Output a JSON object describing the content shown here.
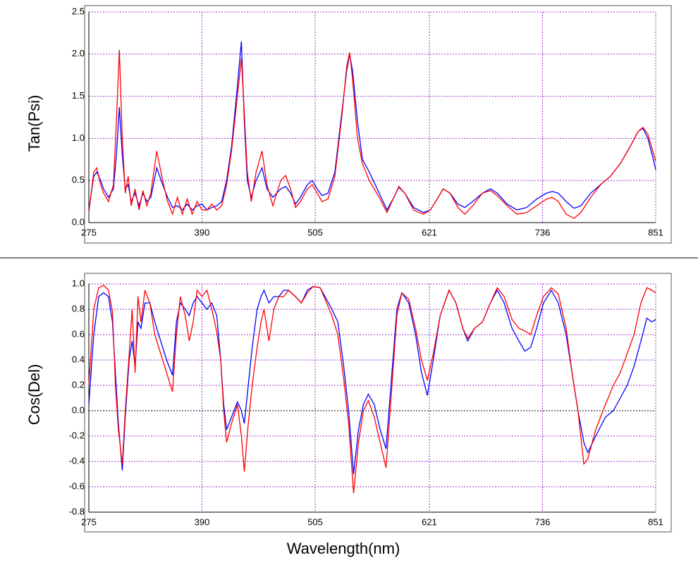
{
  "chart_data": [
    {
      "type": "line",
      "ylabel": "Tan(Psi)",
      "x": [
        275,
        280,
        283,
        287,
        290,
        295,
        300,
        303,
        306,
        309,
        312,
        315,
        318,
        322,
        326,
        330,
        334,
        338,
        344,
        350,
        355,
        360,
        365,
        370,
        375,
        380,
        385,
        390,
        395,
        400,
        405,
        410,
        415,
        420,
        425,
        430,
        433,
        436,
        440,
        445,
        451,
        456,
        462,
        470,
        475,
        480,
        485,
        490,
        497,
        502,
        507,
        512,
        518,
        525,
        532,
        537,
        540,
        543,
        548,
        553,
        560,
        570,
        578,
        585,
        590,
        596,
        605,
        615,
        622,
        630,
        635,
        642,
        650,
        657,
        665,
        675,
        683,
        690,
        700,
        710,
        720,
        730,
        740,
        746,
        752,
        760,
        768,
        775,
        785,
        795,
        805,
        815,
        825,
        833,
        838,
        843,
        848,
        851
      ],
      "series": [
        {
          "color": "#0000ff",
          "values": [
            0.15,
            0.55,
            0.6,
            0.5,
            0.4,
            0.3,
            0.4,
            0.8,
            1.37,
            0.8,
            0.4,
            0.45,
            0.25,
            0.35,
            0.2,
            0.35,
            0.25,
            0.3,
            0.65,
            0.45,
            0.3,
            0.18,
            0.2,
            0.15,
            0.22,
            0.15,
            0.2,
            0.22,
            0.15,
            0.18,
            0.2,
            0.25,
            0.5,
            0.9,
            1.5,
            2.15,
            1.2,
            0.5,
            0.3,
            0.5,
            0.65,
            0.4,
            0.3,
            0.4,
            0.43,
            0.35,
            0.22,
            0.3,
            0.45,
            0.5,
            0.4,
            0.32,
            0.35,
            0.6,
            1.3,
            1.8,
            2.0,
            1.8,
            1.2,
            0.75,
            0.6,
            0.35,
            0.15,
            0.3,
            0.42,
            0.35,
            0.18,
            0.12,
            0.15,
            0.3,
            0.4,
            0.35,
            0.22,
            0.18,
            0.25,
            0.35,
            0.4,
            0.35,
            0.22,
            0.15,
            0.18,
            0.28,
            0.35,
            0.37,
            0.35,
            0.25,
            0.17,
            0.2,
            0.35,
            0.45,
            0.55,
            0.7,
            0.9,
            1.08,
            1.12,
            1.0,
            0.78,
            0.63
          ]
        },
        {
          "color": "#ff0000",
          "values": [
            0.12,
            0.6,
            0.65,
            0.45,
            0.35,
            0.25,
            0.45,
            1.2,
            2.05,
            1.0,
            0.35,
            0.55,
            0.2,
            0.4,
            0.15,
            0.38,
            0.2,
            0.35,
            0.85,
            0.5,
            0.25,
            0.1,
            0.3,
            0.1,
            0.28,
            0.1,
            0.25,
            0.15,
            0.15,
            0.22,
            0.15,
            0.2,
            0.45,
            0.85,
            1.4,
            1.95,
            1.3,
            0.6,
            0.25,
            0.6,
            0.85,
            0.45,
            0.2,
            0.5,
            0.56,
            0.4,
            0.18,
            0.25,
            0.4,
            0.45,
            0.35,
            0.25,
            0.28,
            0.55,
            1.25,
            1.85,
            2.02,
            1.7,
            1.0,
            0.7,
            0.5,
            0.3,
            0.12,
            0.3,
            0.43,
            0.35,
            0.15,
            0.1,
            0.15,
            0.3,
            0.4,
            0.35,
            0.18,
            0.1,
            0.2,
            0.35,
            0.38,
            0.32,
            0.2,
            0.1,
            0.12,
            0.2,
            0.28,
            0.3,
            0.25,
            0.1,
            0.05,
            0.12,
            0.3,
            0.45,
            0.55,
            0.7,
            0.9,
            1.08,
            1.13,
            1.05,
            0.85,
            0.73
          ]
        }
      ],
      "xlim": [
        275,
        851
      ],
      "xticks": [
        275,
        390,
        505,
        621,
        736,
        851
      ],
      "ylim": [
        0,
        2.5
      ],
      "yticks": [
        {
          "value": 0,
          "label": "0.0"
        },
        0.5,
        {
          "value": 1,
          "label": "1.0"
        },
        1.5,
        {
          "value": 2,
          "label": "2.0"
        },
        2.5
      ],
      "grid": true,
      "grid_color": "#9933cc"
    },
    {
      "type": "line",
      "ylabel": "Cos(Del)",
      "xlabel": "Wavelength(nm)",
      "x": [
        275,
        280,
        285,
        290,
        295,
        299,
        302,
        305,
        309,
        312,
        316,
        319,
        322,
        325,
        328,
        332,
        337,
        342,
        348,
        354,
        360,
        364,
        368,
        373,
        377,
        381,
        385,
        390,
        395,
        400,
        405,
        409,
        412,
        415,
        420,
        426,
        430,
        433,
        437,
        441,
        446,
        450,
        453,
        458,
        463,
        468,
        473,
        478,
        485,
        491,
        497,
        503,
        510,
        515,
        522,
        528,
        534,
        539,
        544,
        549,
        554,
        559,
        565,
        571,
        577,
        583,
        588,
        593,
        600,
        607,
        613,
        619,
        625,
        632,
        641,
        648,
        655,
        660,
        667,
        675,
        683,
        690,
        697,
        705,
        712,
        718,
        724,
        730,
        737,
        745,
        752,
        760,
        766,
        772,
        778,
        782,
        790,
        800,
        808,
        815,
        822,
        829,
        836,
        842,
        847,
        851
      ],
      "series": [
        {
          "color": "#0000ff",
          "values": [
            0.05,
            0.6,
            0.9,
            0.93,
            0.9,
            0.7,
            0.3,
            -0.1,
            -0.47,
            -0.05,
            0.4,
            0.55,
            0.35,
            0.7,
            0.65,
            0.85,
            0.85,
            0.7,
            0.55,
            0.4,
            0.28,
            0.7,
            0.85,
            0.8,
            0.75,
            0.85,
            0.9,
            0.85,
            0.8,
            0.85,
            0.75,
            0.4,
            0.05,
            -0.15,
            -0.05,
            0.07,
            0.0,
            -0.1,
            0.2,
            0.5,
            0.8,
            0.9,
            0.95,
            0.85,
            0.9,
            0.9,
            0.95,
            0.95,
            0.9,
            0.85,
            0.95,
            0.98,
            0.97,
            0.9,
            0.8,
            0.7,
            0.35,
            0.0,
            -0.5,
            -0.15,
            0.05,
            0.13,
            0.05,
            -0.15,
            -0.3,
            0.3,
            0.8,
            0.93,
            0.85,
            0.6,
            0.3,
            0.12,
            0.4,
            0.75,
            0.95,
            0.85,
            0.65,
            0.55,
            0.65,
            0.7,
            0.85,
            0.95,
            0.85,
            0.65,
            0.55,
            0.47,
            0.5,
            0.65,
            0.85,
            0.95,
            0.85,
            0.6,
            0.3,
            0.0,
            -0.25,
            -0.33,
            -0.2,
            -0.05,
            0.0,
            0.1,
            0.2,
            0.35,
            0.55,
            0.73,
            0.7,
            0.72
          ]
        },
        {
          "color": "#ff0000",
          "values": [
            0.2,
            0.8,
            0.97,
            0.99,
            0.95,
            0.78,
            0.2,
            -0.15,
            -0.42,
            0.0,
            0.45,
            0.8,
            0.3,
            0.9,
            0.7,
            0.95,
            0.85,
            0.6,
            0.45,
            0.3,
            0.15,
            0.6,
            0.9,
            0.75,
            0.55,
            0.7,
            0.95,
            0.9,
            0.95,
            0.8,
            0.62,
            0.4,
            0.0,
            -0.25,
            -0.1,
            0.05,
            -0.2,
            -0.48,
            -0.1,
            0.2,
            0.5,
            0.7,
            0.8,
            0.55,
            0.8,
            0.9,
            0.9,
            0.95,
            0.9,
            0.85,
            0.93,
            0.98,
            0.97,
            0.88,
            0.75,
            0.6,
            0.25,
            -0.1,
            -0.65,
            -0.25,
            0.0,
            0.08,
            -0.05,
            -0.25,
            -0.45,
            0.2,
            0.75,
            0.93,
            0.88,
            0.65,
            0.4,
            0.24,
            0.45,
            0.75,
            0.95,
            0.85,
            0.65,
            0.57,
            0.65,
            0.7,
            0.85,
            0.97,
            0.9,
            0.72,
            0.65,
            0.63,
            0.6,
            0.75,
            0.9,
            0.97,
            0.92,
            0.65,
            0.3,
            0.0,
            -0.42,
            -0.38,
            -0.15,
            0.05,
            0.2,
            0.3,
            0.45,
            0.6,
            0.85,
            0.97,
            0.95,
            0.93
          ]
        }
      ],
      "xlim": [
        275,
        851
      ],
      "xticks": [
        275,
        390,
        505,
        621,
        736,
        851
      ],
      "ylim": [
        -0.8,
        1
      ],
      "yticks": [
        -0.8,
        -0.6,
        -0.4,
        -0.2,
        {
          "value": 0,
          "label": "0.0"
        },
        0.2,
        0.4,
        0.6,
        0.8,
        {
          "value": 1,
          "label": "1.0"
        }
      ],
      "grid": true,
      "grid_color": "#9933cc",
      "zero_line": true
    }
  ]
}
